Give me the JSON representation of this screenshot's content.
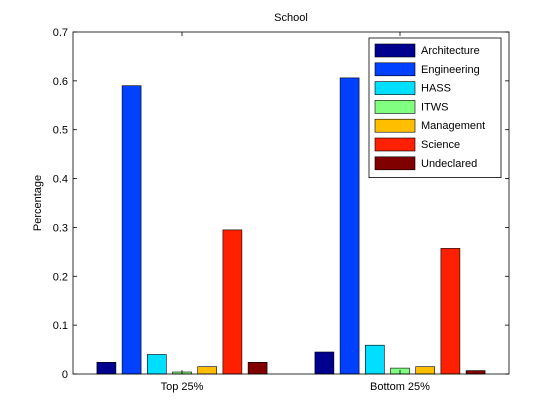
{
  "chart_data": {
    "type": "bar",
    "title": "School",
    "xlabel": "",
    "ylabel": "Percentage",
    "ylim": [
      0,
      0.7
    ],
    "yticks": [
      "0",
      "0.1",
      "0.2",
      "0.3",
      "0.4",
      "0.5",
      "0.6",
      "0.7"
    ],
    "categories": [
      "Top 25%",
      "Bottom 25%"
    ],
    "legend_position": "top-right",
    "grid": false,
    "series": [
      {
        "name": "Architecture",
        "color": "#00008f",
        "values": [
          0.024,
          0.045
        ]
      },
      {
        "name": "Engineering",
        "color": "#0040ff",
        "values": [
          0.59,
          0.606
        ]
      },
      {
        "name": "HASS",
        "color": "#00dfff",
        "values": [
          0.04,
          0.059
        ]
      },
      {
        "name": "ITWS",
        "color": "#80ff80",
        "values": [
          0.004,
          0.012
        ]
      },
      {
        "name": "Management",
        "color": "#ffbf00",
        "values": [
          0.015,
          0.015
        ]
      },
      {
        "name": "Science",
        "color": "#ff2000",
        "values": [
          0.295,
          0.257
        ]
      },
      {
        "name": "Undeclared",
        "color": "#800000",
        "values": [
          0.024,
          0.007
        ]
      }
    ]
  }
}
